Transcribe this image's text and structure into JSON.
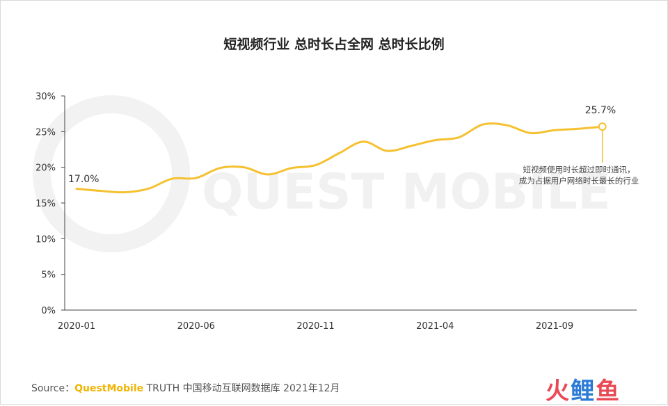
{
  "chart_data": {
    "type": "line",
    "title": "短视频行业 总时长占全网 总时长比例",
    "watermark": "QUEST MOBILE",
    "x": [
      "2020-01",
      "2020-02",
      "2020-03",
      "2020-04",
      "2020-05",
      "2020-06",
      "2020-07",
      "2020-08",
      "2020-09",
      "2020-10",
      "2020-11",
      "2020-12",
      "2021-01",
      "2021-02",
      "2021-03",
      "2021-04",
      "2021-05",
      "2021-06",
      "2021-07",
      "2021-08",
      "2021-09",
      "2021-10",
      "2021-11"
    ],
    "xticks": [
      "2020-01",
      "2020-06",
      "2020-11",
      "2021-04",
      "2021-09"
    ],
    "yticks": [
      "0%",
      "5%",
      "10%",
      "15%",
      "20%",
      "25%",
      "30%"
    ],
    "ylim": [
      0,
      30
    ],
    "series": [
      {
        "values": [
          17.0,
          16.7,
          16.5,
          17.0,
          18.4,
          18.5,
          19.9,
          20.0,
          19.0,
          19.9,
          20.3,
          22.0,
          23.6,
          22.3,
          23.0,
          23.8,
          24.2,
          26.0,
          25.9,
          24.8,
          25.2,
          25.4,
          25.7
        ]
      }
    ],
    "line_color": "#f5c131",
    "data_labels": [
      {
        "index": 0,
        "text": "17.0%"
      },
      {
        "index": 22,
        "text": "25.7%"
      }
    ],
    "annotation": [
      "短视频使用时长超过即时通讯，",
      "成为占据用户网络时长最长的行业"
    ]
  },
  "footer": {
    "source_prefix": "Source：",
    "source_brand": "QuestMobile",
    "source_rest": " TRUTH 中国移动互联网数据库 2021年12月"
  },
  "logo": {
    "part1": "火",
    "part2": "鲤",
    "part3": "鱼"
  }
}
